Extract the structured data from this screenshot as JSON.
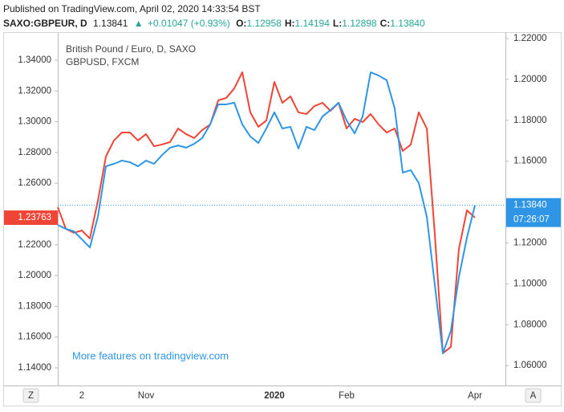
{
  "header": {
    "published": "Published on TradingView.com, April 02, 2020 14:33:54 BST",
    "symbol": "SAXO:GBPEUR, D",
    "price": "1.13841",
    "change": "+0.01047 (+0.93%)",
    "ohlc": [
      {
        "key": "O:",
        "value": "1.12958"
      },
      {
        "key": "H:",
        "value": "1.14194"
      },
      {
        "key": "L:",
        "value": "1.12898"
      },
      {
        "key": "C:",
        "value": "1.13840"
      }
    ]
  },
  "chart_data": {
    "type": "line",
    "watermark": "More features on tradingview.com",
    "countdown": "07:26:07",
    "buttons": [
      "Z",
      "A"
    ],
    "categories": [
      null,
      null,
      null,
      "2",
      null,
      null,
      null,
      null,
      null,
      null,
      null,
      "Nov",
      null,
      null,
      null,
      null,
      null,
      null,
      null,
      null,
      null,
      null,
      null,
      null,
      null,
      null,
      null,
      "2020",
      null,
      null,
      null,
      null,
      null,
      null,
      null,
      null,
      "Feb",
      null,
      null,
      null,
      null,
      null,
      null,
      null,
      null,
      null,
      null,
      null,
      null,
      null,
      null,
      null,
      "Apr"
    ],
    "series": [
      {
        "name": "GBPUSD, FXCM",
        "color": "#ef4536",
        "axis": "y",
        "values": [
          1.2445,
          1.2304,
          1.2278,
          1.2293,
          1.2241,
          1.2486,
          1.2774,
          1.2878,
          1.293,
          1.293,
          1.2878,
          1.292,
          1.2841,
          1.2852,
          1.2868,
          1.2956,
          1.292,
          1.2894,
          1.2946,
          1.2982,
          1.3139,
          1.3155,
          1.3217,
          1.3322,
          1.3061,
          1.2967,
          1.3008,
          1.3259,
          1.3123,
          1.3165,
          1.3061,
          1.305,
          1.3102,
          1.3123,
          1.3071,
          1.3123,
          1.2956,
          1.3019,
          1.2998,
          1.305,
          1.2982,
          1.293,
          1.2956,
          1.281,
          1.2852,
          1.3061,
          1.2956,
          1.2267,
          1.1495,
          1.1536,
          1.2173,
          1.2424,
          1.23763
        ],
        "last_label": "1.23763"
      },
      {
        "name": "British Pound / Euro, D, SAXO",
        "color": "#2f95e6",
        "axis": "y2",
        "values": [
          1.1288,
          1.1269,
          1.1257,
          1.1218,
          1.1178,
          1.1328,
          1.1575,
          1.1587,
          1.1603,
          1.1595,
          1.1575,
          1.1603,
          1.1587,
          1.163,
          1.1666,
          1.1677,
          1.1666,
          1.1685,
          1.1713,
          1.178,
          1.1878,
          1.1878,
          1.1886,
          1.178,
          1.1721,
          1.1689,
          1.176,
          1.1839,
          1.176,
          1.1768,
          1.1662,
          1.1768,
          1.1752,
          1.1819,
          1.185,
          1.1886,
          1.1799,
          1.1736,
          1.1819,
          1.2035,
          1.2019,
          1.1996,
          1.1858,
          1.1544,
          1.1556,
          1.1493,
          1.1328,
          1.0994,
          1.066,
          1.077,
          1.1033,
          1.1226,
          1.1384
        ],
        "last_label": "1.13840"
      }
    ],
    "ylim": [
      1.1285,
      1.35828
    ],
    "yticks": [
      {
        "value": 1.34,
        "label": "1.34000"
      },
      {
        "value": 1.32,
        "label": "1.32000"
      },
      {
        "value": 1.3,
        "label": "1.30000"
      },
      {
        "value": 1.28,
        "label": "1.28000"
      },
      {
        "value": 1.26,
        "label": "1.26000"
      },
      {
        "value": 1.22,
        "label": "1.22000"
      },
      {
        "value": 1.2,
        "label": "1.20000"
      },
      {
        "value": 1.18,
        "label": "1.18000"
      },
      {
        "value": 1.16,
        "label": "1.16000"
      },
      {
        "value": 1.14,
        "label": "1.14000"
      }
    ],
    "y2lim": [
      1.05026,
      1.22314
    ],
    "y2ticks": [
      {
        "value": 1.22,
        "label": "1.22000"
      },
      {
        "value": 1.2,
        "label": "1.20000"
      },
      {
        "value": 1.18,
        "label": "1.18000"
      },
      {
        "value": 1.16,
        "label": "1.16000"
      },
      {
        "value": 1.12,
        "label": "1.12000"
      },
      {
        "value": 1.1,
        "label": "1.10000"
      },
      {
        "value": 1.08,
        "label": "1.08000"
      },
      {
        "value": 1.06,
        "label": "1.06000"
      }
    ]
  }
}
